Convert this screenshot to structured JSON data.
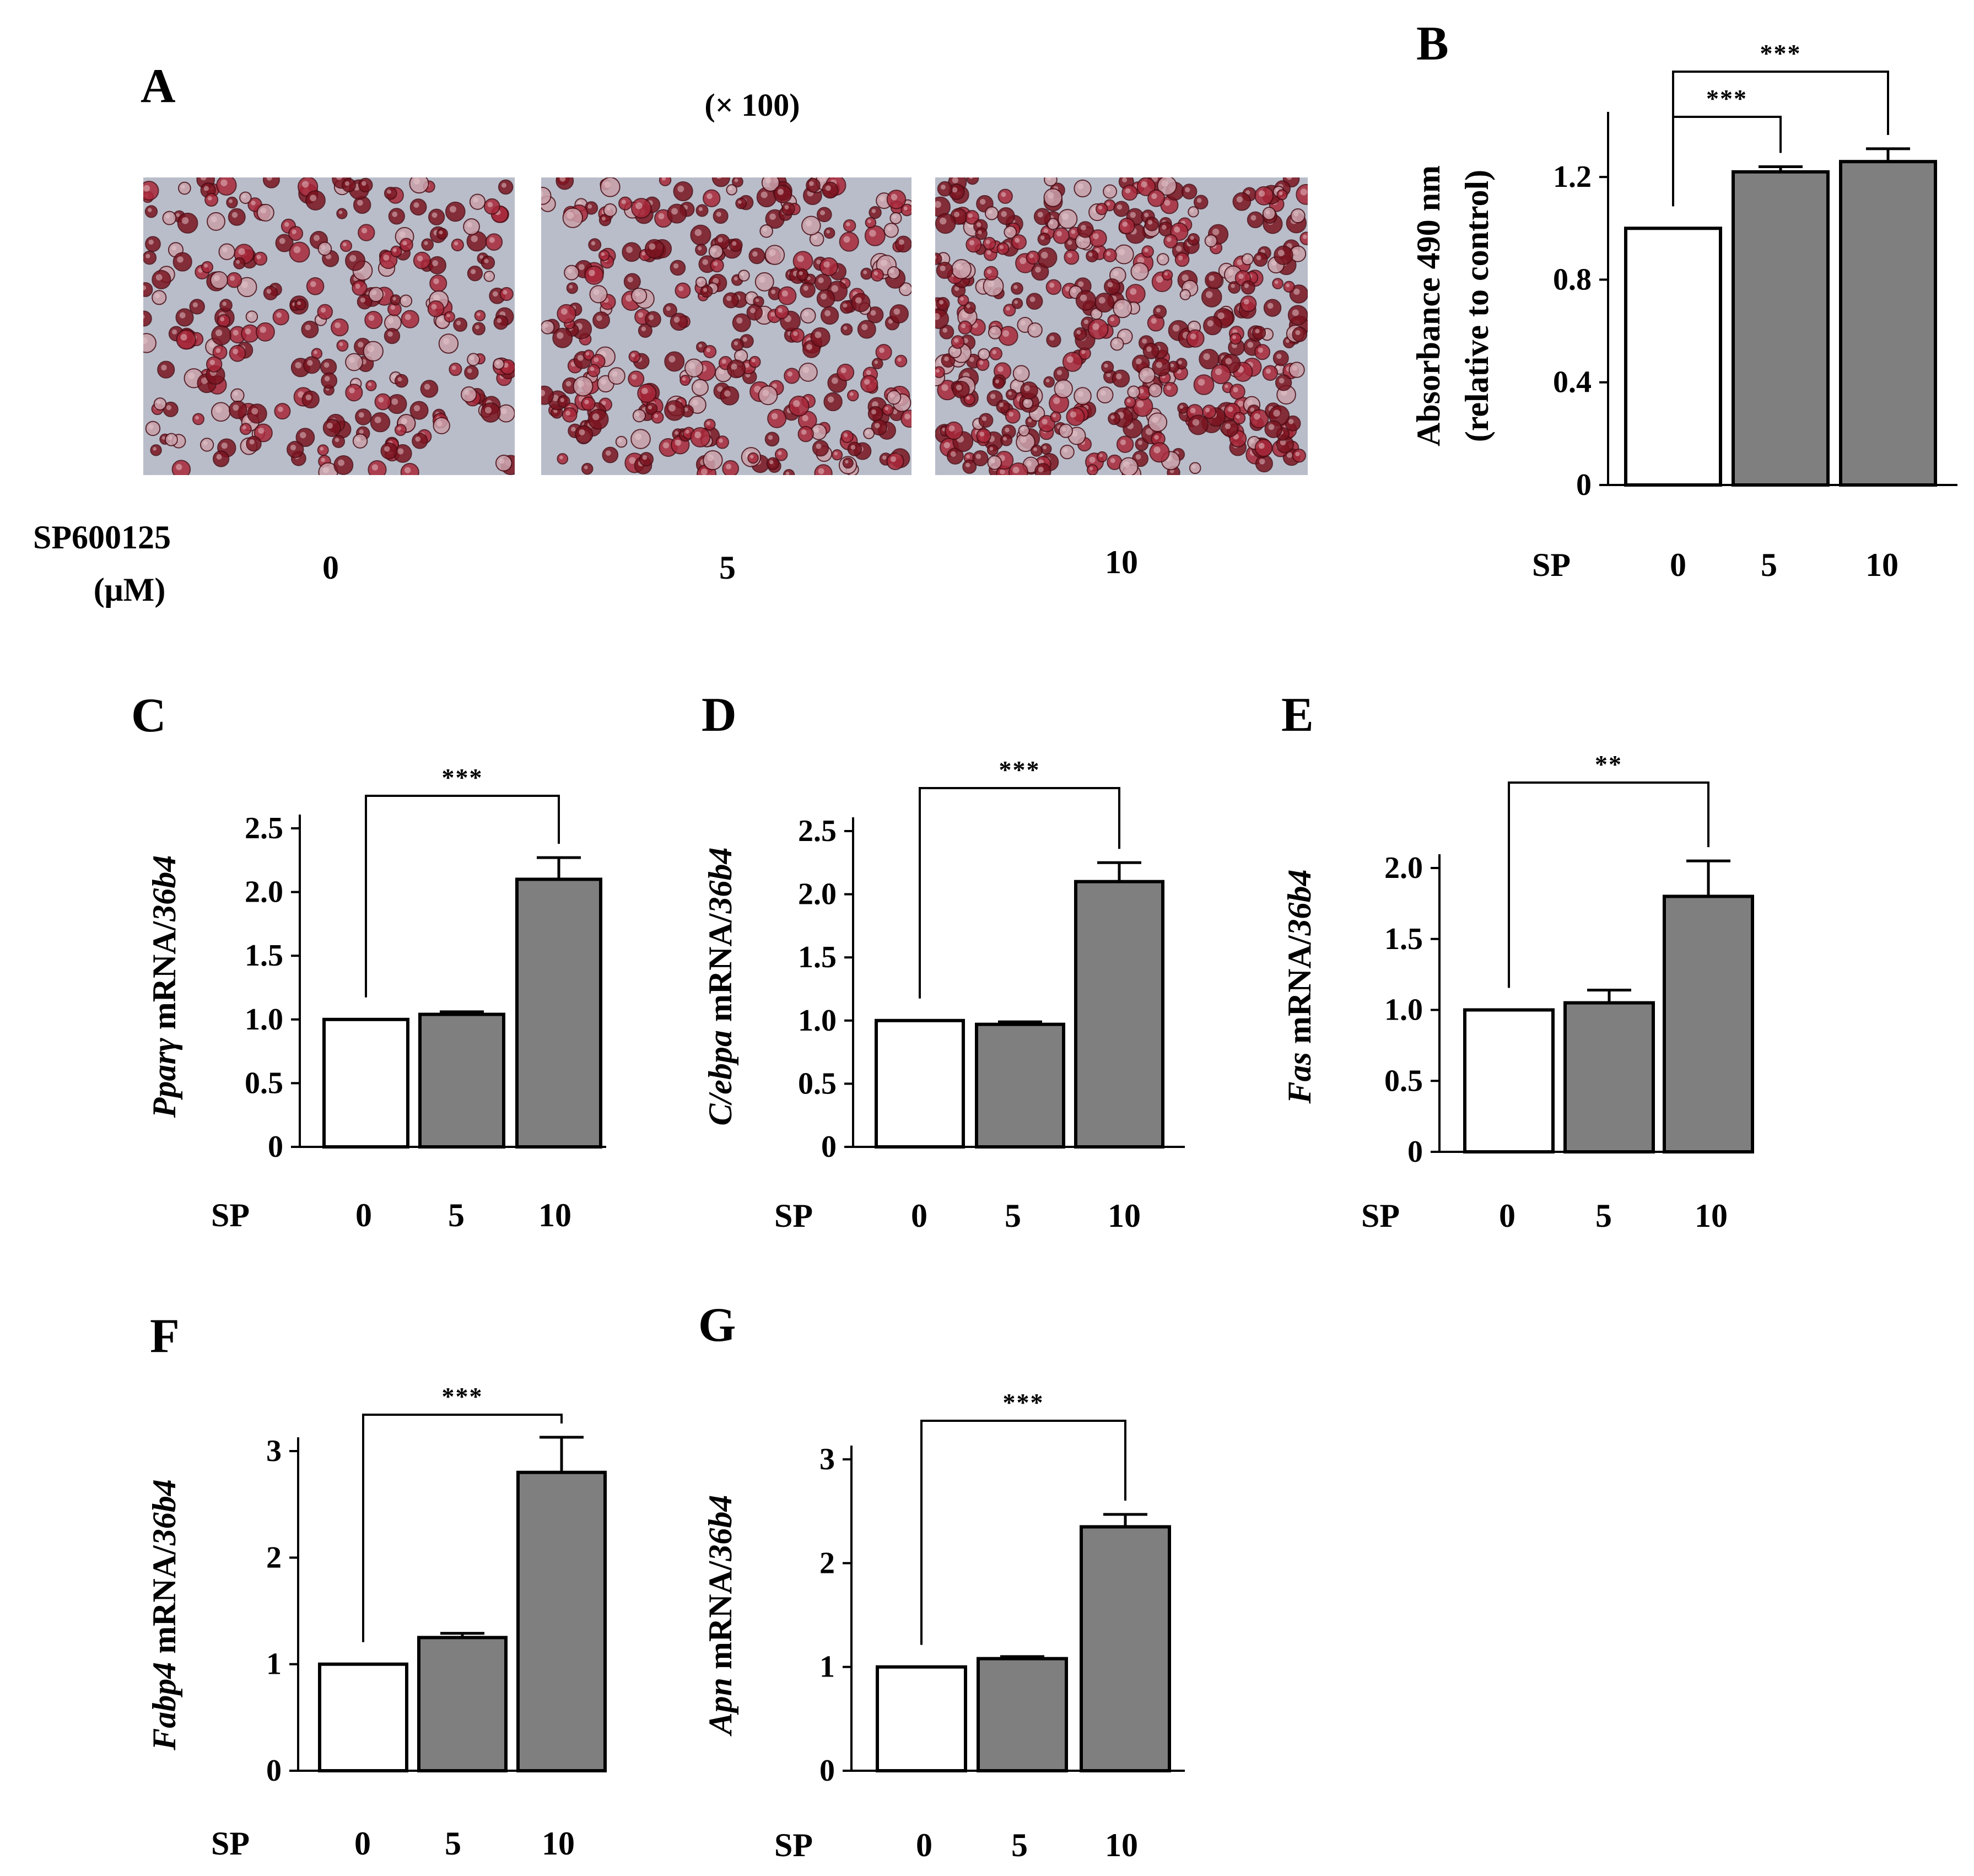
{
  "panel_a": {
    "letter": "A",
    "magnification": "(× 100)",
    "treatment_label_line1": "SP600125",
    "treatment_label_line2": "(μM)",
    "doses": [
      "0",
      "5",
      "10"
    ],
    "image_colors": {
      "background": "#b9bdc9",
      "stain_dark": "#7a1420",
      "stain_mid": "#a8283a",
      "stain_light": "#c9a0aa"
    }
  },
  "chart_data": [
    {
      "id": "B",
      "letter": "B",
      "type": "bar",
      "categories": [
        "0",
        "5",
        "10"
      ],
      "values": [
        1.0,
        1.22,
        1.26
      ],
      "errors": [
        0,
        0.02,
        0.05
      ],
      "bar_colors": [
        "#ffffff",
        "#7f7f7f",
        "#7f7f7f"
      ],
      "ylim": [
        0,
        1.4
      ],
      "yticks": [
        0,
        0.4,
        0.8,
        1.2
      ],
      "ytick_labels": [
        "0",
        "0.4",
        "0.8",
        "1.2"
      ],
      "ylabel_line1": "Absorbance 490 nm",
      "ylabel_line2": "(relative to control)",
      "xlabel": "SP",
      "significance": [
        {
          "from": 0,
          "to": 2,
          "label": "***"
        },
        {
          "from": 0,
          "to": 1,
          "label": "***"
        }
      ]
    },
    {
      "id": "C",
      "letter": "C",
      "type": "bar",
      "categories": [
        "0",
        "5",
        "10"
      ],
      "values": [
        1.0,
        1.04,
        2.1
      ],
      "errors": [
        0,
        0.02,
        0.17
      ],
      "bar_colors": [
        "#ffffff",
        "#7f7f7f",
        "#7f7f7f"
      ],
      "ylim": [
        0,
        2.5
      ],
      "yticks": [
        0,
        0.5,
        1.0,
        1.5,
        2.0,
        2.5
      ],
      "ytick_labels": [
        "0",
        "0.5",
        "1.0",
        "1.5",
        "2.0",
        "2.5"
      ],
      "ylabel_gene": "Pparγ",
      "ylabel_mid": " mRNA/",
      "ylabel_ref": "36b4",
      "xlabel": "SP",
      "significance": [
        {
          "from": 0,
          "to": 2,
          "label": "***"
        }
      ]
    },
    {
      "id": "D",
      "letter": "D",
      "type": "bar",
      "categories": [
        "0",
        "5",
        "10"
      ],
      "values": [
        1.0,
        0.97,
        2.1
      ],
      "errors": [
        0,
        0.02,
        0.15
      ],
      "bar_colors": [
        "#ffffff",
        "#7f7f7f",
        "#7f7f7f"
      ],
      "ylim": [
        0,
        2.5
      ],
      "yticks": [
        0,
        0.5,
        1.0,
        1.5,
        2.0,
        2.5
      ],
      "ytick_labels": [
        "0",
        "0.5",
        "1.0",
        "1.5",
        "2.0",
        "2.5"
      ],
      "ylabel_gene": "C/ebpa",
      "ylabel_mid": " mRNA/",
      "ylabel_ref": "36b4",
      "xlabel": "SP",
      "significance": [
        {
          "from": 0,
          "to": 2,
          "label": "***"
        }
      ]
    },
    {
      "id": "E",
      "letter": "E",
      "type": "bar",
      "categories": [
        "0",
        "5",
        "10"
      ],
      "values": [
        1.0,
        1.05,
        1.8
      ],
      "errors": [
        0,
        0.09,
        0.25
      ],
      "bar_colors": [
        "#ffffff",
        "#7f7f7f",
        "#7f7f7f"
      ],
      "ylim": [
        0,
        2.0
      ],
      "yticks": [
        0,
        0.5,
        1.0,
        1.5,
        2.0
      ],
      "ytick_labels": [
        "0",
        "0.5",
        "1.0",
        "1.5",
        "2.0"
      ],
      "ylabel_gene": "Fas",
      "ylabel_mid": " mRNA/",
      "ylabel_ref": "36b4",
      "xlabel": "SP",
      "significance": [
        {
          "from": 0,
          "to": 2,
          "label": "**"
        }
      ]
    },
    {
      "id": "F",
      "letter": "F",
      "type": "bar",
      "categories": [
        "0",
        "5",
        "10"
      ],
      "values": [
        1.0,
        1.25,
        2.8
      ],
      "errors": [
        0,
        0.04,
        0.33
      ],
      "bar_colors": [
        "#ffffff",
        "#7f7f7f",
        "#7f7f7f"
      ],
      "ylim": [
        0,
        3.0
      ],
      "yticks": [
        0,
        1,
        2,
        3
      ],
      "ytick_labels": [
        "0",
        "1",
        "2",
        "3"
      ],
      "ylabel_gene": "Fabp4",
      "ylabel_mid": " mRNA/",
      "ylabel_ref": "36b4",
      "xlabel": "SP",
      "significance": [
        {
          "from": 0,
          "to": 2,
          "label": "***"
        }
      ]
    },
    {
      "id": "G",
      "letter": "G",
      "type": "bar",
      "categories": [
        "0",
        "5",
        "10"
      ],
      "values": [
        1.0,
        1.08,
        2.35
      ],
      "errors": [
        0,
        0.02,
        0.12
      ],
      "bar_colors": [
        "#ffffff",
        "#7f7f7f",
        "#7f7f7f"
      ],
      "ylim": [
        0,
        3.0
      ],
      "yticks": [
        0,
        1,
        2,
        3
      ],
      "ytick_labels": [
        "0",
        "1",
        "2",
        "3"
      ],
      "ylabel_gene": "Apn",
      "ylabel_mid": " mRNA/",
      "ylabel_ref": "36b4",
      "xlabel": "SP",
      "significance": [
        {
          "from": 0,
          "to": 2,
          "label": "***"
        }
      ]
    }
  ]
}
